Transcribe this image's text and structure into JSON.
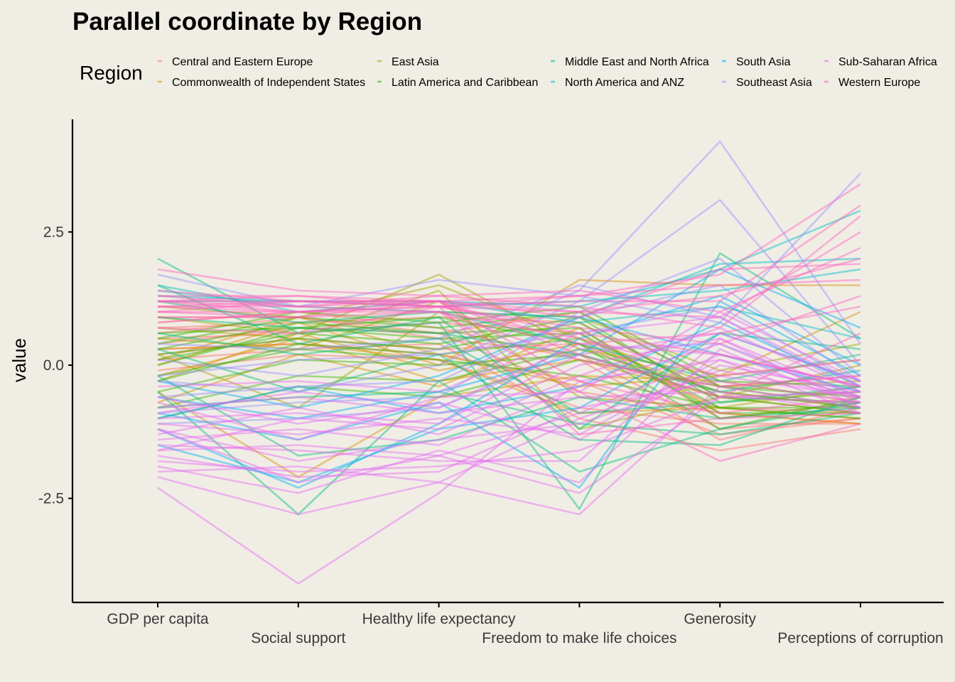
{
  "chart_data": {
    "type": "line",
    "subtype": "parallel-coordinates",
    "title": "Parallel coordinate by Region",
    "ylabel": "value",
    "xlabel": "",
    "categories": [
      "GDP per capita",
      "Social support",
      "Healthy life expectancy",
      "Freedom to make life choices",
      "Generosity",
      "Perceptions of corruption"
    ],
    "y_ticks": [
      -2.5,
      0.0,
      2.5
    ],
    "y_tick_labels": [
      "-2.5",
      "0.0",
      "2.5"
    ],
    "ylim": [
      -4.45,
      4.45
    ],
    "grid": false,
    "line_opacity": 0.45,
    "legend": {
      "title": "Region",
      "position": "top",
      "entries": [
        {
          "name": "Central and Eastern Europe",
          "color": "#F8766D"
        },
        {
          "name": "Commonwealth of Independent States",
          "color": "#D89000"
        },
        {
          "name": "East Asia",
          "color": "#A3A500"
        },
        {
          "name": "Latin America and Caribbean",
          "color": "#39B600"
        },
        {
          "name": "Middle East and North Africa",
          "color": "#00BF7D"
        },
        {
          "name": "North America and ANZ",
          "color": "#00BFC4"
        },
        {
          "name": "South Asia",
          "color": "#00B0F6"
        },
        {
          "name": "Southeast Asia",
          "color": "#9590FF"
        },
        {
          "name": "Sub-Saharan Africa",
          "color": "#E76BF3"
        },
        {
          "name": "Western Europe",
          "color": "#FF62BC"
        }
      ]
    },
    "series": [
      {
        "region": "Central and Eastern Europe",
        "values": [
          0.6,
          0.9,
          0.5,
          0.2,
          -1.2,
          -1.0
        ]
      },
      {
        "region": "Central and Eastern Europe",
        "values": [
          0.4,
          0.7,
          0.6,
          -0.5,
          -0.9,
          -1.1
        ]
      },
      {
        "region": "Central and Eastern Europe",
        "values": [
          0.2,
          0.5,
          0.3,
          0.4,
          -0.8,
          -0.9
        ]
      },
      {
        "region": "Central and Eastern Europe",
        "values": [
          0.8,
          1.0,
          0.7,
          0.1,
          -1.4,
          -0.8
        ]
      },
      {
        "region": "Central and Eastern Europe",
        "values": [
          0.1,
          0.3,
          0.4,
          -1.0,
          -1.6,
          -1.2
        ]
      },
      {
        "region": "Central and Eastern Europe",
        "values": [
          0.5,
          0.6,
          0.8,
          0.6,
          -1.0,
          -0.7
        ]
      },
      {
        "region": "Central and Eastern Europe",
        "values": [
          0.3,
          0.4,
          0.2,
          -0.3,
          -1.3,
          -1.0
        ]
      },
      {
        "region": "Central and Eastern Europe",
        "values": [
          0.7,
          0.8,
          0.9,
          0.8,
          -0.6,
          -0.5
        ]
      },
      {
        "region": "Central and Eastern Europe",
        "values": [
          -0.1,
          0.2,
          0.1,
          -0.8,
          -1.1,
          -1.1
        ]
      },
      {
        "region": "Central and Eastern Europe",
        "values": [
          0.9,
          0.9,
          0.6,
          1.0,
          -0.4,
          -0.2
        ]
      },
      {
        "region": "Commonwealth of Independent States",
        "values": [
          -0.2,
          0.5,
          -0.3,
          0.1,
          -0.6,
          -0.9
        ]
      },
      {
        "region": "Commonwealth of Independent States",
        "values": [
          0.0,
          0.8,
          0.0,
          1.6,
          1.5,
          1.5
        ]
      },
      {
        "region": "Commonwealth of Independent States",
        "values": [
          -0.5,
          -2.1,
          -0.6,
          -0.2,
          -0.3,
          -0.7
        ]
      },
      {
        "region": "Commonwealth of Independent States",
        "values": [
          0.3,
          0.4,
          0.1,
          -0.9,
          -0.8,
          -1.0
        ]
      },
      {
        "region": "Commonwealth of Independent States",
        "values": [
          -0.3,
          0.6,
          -0.1,
          0.4,
          -0.5,
          -0.8
        ]
      },
      {
        "region": "Commonwealth of Independent States",
        "values": [
          0.1,
          0.9,
          0.2,
          -0.4,
          -0.2,
          1.0
        ]
      },
      {
        "region": "Commonwealth of Independent States",
        "values": [
          -0.7,
          0.2,
          -0.4,
          0.7,
          -0.9,
          -1.1
        ]
      },
      {
        "region": "East Asia",
        "values": [
          0.9,
          0.6,
          1.7,
          0.3,
          -0.2,
          0.1
        ]
      },
      {
        "region": "East Asia",
        "values": [
          1.1,
          0.9,
          1.5,
          0.5,
          -0.4,
          -0.3
        ]
      },
      {
        "region": "East Asia",
        "values": [
          0.5,
          0.3,
          1.2,
          -0.6,
          -0.8,
          -0.4
        ]
      },
      {
        "region": "East Asia",
        "values": [
          0.2,
          -0.8,
          1.0,
          0.9,
          -0.1,
          0.4
        ]
      },
      {
        "region": "East Asia",
        "values": [
          0.7,
          0.5,
          1.4,
          -1.2,
          -0.6,
          0.0
        ]
      },
      {
        "region": "Latin America and Caribbean",
        "values": [
          0.2,
          0.5,
          0.3,
          0.8,
          -0.6,
          -0.7
        ]
      },
      {
        "region": "Latin America and Caribbean",
        "values": [
          0.0,
          0.7,
          0.5,
          0.6,
          -0.8,
          -0.8
        ]
      },
      {
        "region": "Latin America and Caribbean",
        "values": [
          0.4,
          0.9,
          0.7,
          1.0,
          -0.4,
          -0.6
        ]
      },
      {
        "region": "Latin America and Caribbean",
        "values": [
          -0.3,
          0.4,
          0.2,
          0.5,
          -0.9,
          -0.9
        ]
      },
      {
        "region": "Latin America and Caribbean",
        "values": [
          0.1,
          0.6,
          0.4,
          0.9,
          -0.7,
          -0.5
        ]
      },
      {
        "region": "Latin America and Caribbean",
        "values": [
          -0.8,
          -0.2,
          -0.3,
          0.3,
          -0.5,
          -0.8
        ]
      },
      {
        "region": "Latin America and Caribbean",
        "values": [
          0.3,
          0.8,
          0.6,
          0.7,
          -1.0,
          -0.7
        ]
      },
      {
        "region": "Latin America and Caribbean",
        "values": [
          -0.5,
          0.1,
          0.0,
          0.2,
          -0.6,
          -0.9
        ]
      },
      {
        "region": "Latin America and Caribbean",
        "values": [
          0.5,
          1.0,
          0.8,
          1.1,
          -0.3,
          -0.4
        ]
      },
      {
        "region": "Latin America and Caribbean",
        "values": [
          -0.2,
          0.3,
          0.1,
          -0.2,
          -0.8,
          -1.0
        ]
      },
      {
        "region": "Latin America and Caribbean",
        "values": [
          0.6,
          0.7,
          0.9,
          0.4,
          -1.2,
          -0.6
        ]
      },
      {
        "region": "Latin America and Caribbean",
        "values": [
          -1.0,
          -0.4,
          -0.6,
          0.1,
          -0.4,
          -0.8
        ]
      },
      {
        "region": "Middle East and North Africa",
        "values": [
          2.0,
          0.6,
          0.8,
          -2.7,
          2.1,
          0.5
        ]
      },
      {
        "region": "Middle East and North Africa",
        "values": [
          1.5,
          0.4,
          0.9,
          -1.2,
          0.6,
          0.3
        ]
      },
      {
        "region": "Middle East and North Africa",
        "values": [
          1.2,
          0.8,
          1.0,
          0.4,
          -0.3,
          0.2
        ]
      },
      {
        "region": "Middle East and North Africa",
        "values": [
          -0.5,
          -2.8,
          -0.3,
          -2.0,
          -1.2,
          -0.7
        ]
      },
      {
        "region": "Middle East and North Africa",
        "values": [
          0.3,
          -0.5,
          0.2,
          -1.4,
          -1.5,
          -0.6
        ]
      },
      {
        "region": "Middle East and North Africa",
        "values": [
          -0.2,
          -1.7,
          -1.4,
          -0.6,
          -1.0,
          -0.8
        ]
      },
      {
        "region": "Middle East and North Africa",
        "values": [
          0.6,
          0.2,
          0.5,
          -0.9,
          -0.7,
          -0.4
        ]
      },
      {
        "region": "Middle East and North Africa",
        "values": [
          0.9,
          0.7,
          0.6,
          0.2,
          -0.5,
          -0.1
        ]
      },
      {
        "region": "Middle East and North Africa",
        "values": [
          -0.8,
          -0.6,
          -0.5,
          -1.1,
          -1.3,
          -0.9
        ]
      },
      {
        "region": "North America and ANZ",
        "values": [
          1.3,
          1.2,
          1.2,
          1.1,
          1.8,
          2.9
        ]
      },
      {
        "region": "North America and ANZ",
        "values": [
          1.4,
          1.1,
          1.0,
          0.9,
          1.9,
          2.0
        ]
      },
      {
        "region": "North America and ANZ",
        "values": [
          1.2,
          1.2,
          1.1,
          1.2,
          1.4,
          1.8
        ]
      },
      {
        "region": "North America and ANZ",
        "values": [
          1.5,
          1.0,
          1.2,
          0.8,
          1.1,
          0.5
        ]
      },
      {
        "region": "South Asia",
        "values": [
          -1.2,
          -2.3,
          -1.1,
          0.5,
          1.3,
          0.0
        ]
      },
      {
        "region": "South Asia",
        "values": [
          -0.9,
          -1.4,
          -0.7,
          -2.3,
          1.2,
          -0.2
        ]
      },
      {
        "region": "South Asia",
        "values": [
          -0.6,
          -1.0,
          -0.5,
          0.2,
          1.8,
          0.7
        ]
      },
      {
        "region": "South Asia",
        "values": [
          -1.5,
          -2.2,
          -1.2,
          -0.8,
          0.6,
          -0.3
        ]
      },
      {
        "region": "South Asia",
        "values": [
          -0.3,
          -0.8,
          -0.2,
          0.9,
          0.2,
          -0.5
        ]
      },
      {
        "region": "South Asia",
        "values": [
          -1.0,
          -0.4,
          -0.9,
          -0.4,
          0.8,
          -0.4
        ]
      },
      {
        "region": "Southeast Asia",
        "values": [
          0.1,
          -0.2,
          0.3,
          1.4,
          4.2,
          0.4
        ]
      },
      {
        "region": "Southeast Asia",
        "values": [
          -0.3,
          -0.5,
          0.0,
          1.2,
          3.1,
          0.0
        ]
      },
      {
        "region": "Southeast Asia",
        "values": [
          1.7,
          1.1,
          1.6,
          1.3,
          0.8,
          3.6
        ]
      },
      {
        "region": "Southeast Asia",
        "values": [
          -0.6,
          -0.4,
          -0.3,
          0.9,
          1.5,
          -0.3
        ]
      },
      {
        "region": "Southeast Asia",
        "values": [
          0.4,
          0.3,
          0.5,
          1.5,
          0.9,
          -0.5
        ]
      },
      {
        "region": "Southeast Asia",
        "values": [
          -0.9,
          -0.7,
          -0.6,
          1.0,
          2.0,
          -0.2
        ]
      },
      {
        "region": "Southeast Asia",
        "values": [
          -0.2,
          0.1,
          0.2,
          0.6,
          1.1,
          -0.4
        ]
      },
      {
        "region": "Southeast Asia",
        "values": [
          -1.1,
          -1.0,
          -0.8,
          0.3,
          0.4,
          -0.6
        ]
      },
      {
        "region": "Sub-Saharan Africa",
        "values": [
          -2.3,
          -4.1,
          -2.4,
          -0.3,
          0.1,
          -0.6
        ]
      },
      {
        "region": "Sub-Saharan Africa",
        "values": [
          -2.1,
          -2.8,
          -2.2,
          -2.8,
          -0.4,
          -0.8
        ]
      },
      {
        "region": "Sub-Saharan Africa",
        "values": [
          -1.8,
          -2.0,
          -1.9,
          -1.6,
          -0.6,
          -0.5
        ]
      },
      {
        "region": "Sub-Saharan Africa",
        "values": [
          -1.6,
          -1.5,
          -1.7,
          -0.9,
          0.2,
          -0.4
        ]
      },
      {
        "region": "Sub-Saharan Africa",
        "values": [
          -1.4,
          -1.2,
          -1.5,
          -0.4,
          0.4,
          -0.7
        ]
      },
      {
        "region": "Sub-Saharan Africa",
        "values": [
          -1.2,
          -1.8,
          -1.4,
          -1.1,
          -0.2,
          -0.6
        ]
      },
      {
        "region": "Sub-Saharan Africa",
        "values": [
          -1.0,
          -0.9,
          -1.1,
          0.2,
          0.6,
          -0.3
        ]
      },
      {
        "region": "Sub-Saharan Africa",
        "values": [
          -0.8,
          -0.6,
          -0.9,
          -0.6,
          -0.5,
          -0.9
        ]
      },
      {
        "region": "Sub-Saharan Africa",
        "values": [
          -0.6,
          -1.1,
          -0.7,
          -1.4,
          0.0,
          -0.5
        ]
      },
      {
        "region": "Sub-Saharan Africa",
        "values": [
          -0.4,
          -0.3,
          -0.5,
          0.6,
          0.9,
          -0.4
        ]
      },
      {
        "region": "Sub-Saharan Africa",
        "values": [
          -1.9,
          -2.4,
          -1.6,
          -2.2,
          0.3,
          -0.8
        ]
      },
      {
        "region": "Sub-Saharan Africa",
        "values": [
          -1.5,
          -1.6,
          -1.8,
          -1.8,
          0.5,
          -0.6
        ]
      },
      {
        "region": "Sub-Saharan Africa",
        "values": [
          -1.7,
          -2.1,
          -2.0,
          -0.8,
          -0.3,
          -0.7
        ]
      },
      {
        "region": "Sub-Saharan Africa",
        "values": [
          -1.3,
          -0.8,
          -1.3,
          -0.2,
          0.7,
          -0.5
        ]
      },
      {
        "region": "Sub-Saharan Africa",
        "values": [
          -1.1,
          -1.3,
          -1.0,
          -1.3,
          0.1,
          -0.9
        ]
      },
      {
        "region": "Sub-Saharan Africa",
        "values": [
          -0.9,
          -0.5,
          -0.8,
          0.4,
          0.2,
          -0.4
        ]
      },
      {
        "region": "Sub-Saharan Africa",
        "values": [
          -2.0,
          -1.9,
          -2.2,
          -1.0,
          -0.1,
          -0.6
        ]
      },
      {
        "region": "Sub-Saharan Africa",
        "values": [
          -0.7,
          -1.4,
          -0.6,
          -0.5,
          1.0,
          -0.3
        ]
      },
      {
        "region": "Sub-Saharan Africa",
        "values": [
          -1.6,
          -1.0,
          -1.2,
          0.0,
          0.5,
          -0.8
        ]
      },
      {
        "region": "Sub-Saharan Africa",
        "values": [
          -1.2,
          -2.2,
          -1.7,
          -2.4,
          -0.6,
          -0.7
        ]
      },
      {
        "region": "Western Europe",
        "values": [
          1.4,
          1.2,
          1.2,
          1.3,
          1.7,
          3.4
        ]
      },
      {
        "region": "Western Europe",
        "values": [
          1.2,
          1.3,
          1.1,
          1.2,
          1.2,
          3.0
        ]
      },
      {
        "region": "Western Europe",
        "values": [
          1.3,
          1.1,
          1.3,
          1.1,
          0.7,
          2.8
        ]
      },
      {
        "region": "Western Europe",
        "values": [
          1.1,
          1.2,
          1.2,
          1.0,
          0.9,
          2.5
        ]
      },
      {
        "region": "Western Europe",
        "values": [
          1.8,
          1.4,
          1.3,
          1.4,
          1.0,
          2.2
        ]
      },
      {
        "region": "Western Europe",
        "values": [
          1.0,
          1.0,
          1.1,
          0.7,
          0.4,
          1.3
        ]
      },
      {
        "region": "Western Europe",
        "values": [
          1.2,
          1.1,
          1.0,
          0.5,
          -0.2,
          0.1
        ]
      },
      {
        "region": "Western Europe",
        "values": [
          0.9,
          0.9,
          1.2,
          -0.3,
          -0.9,
          -0.6
        ]
      },
      {
        "region": "Western Europe",
        "values": [
          1.3,
          1.3,
          1.2,
          0.9,
          1.8,
          1.9
        ]
      },
      {
        "region": "Western Europe",
        "values": [
          1.0,
          1.2,
          1.1,
          0.6,
          0.2,
          -0.4
        ]
      },
      {
        "region": "Western Europe",
        "values": [
          0.8,
          1.0,
          1.0,
          -0.5,
          -1.8,
          -1.1
        ]
      },
      {
        "region": "Western Europe",
        "values": [
          1.1,
          1.0,
          1.2,
          0.2,
          -0.6,
          0.6
        ]
      },
      {
        "region": "Western Europe",
        "values": [
          1.2,
          1.2,
          1.1,
          1.3,
          1.5,
          1.6
        ]
      },
      {
        "region": "Western Europe",
        "values": [
          0.7,
          0.6,
          1.1,
          -1.3,
          -1.0,
          -0.9
        ]
      },
      {
        "region": "Western Europe",
        "values": [
          1.1,
          1.1,
          1.2,
          0.4,
          0.6,
          1.1
        ]
      },
      {
        "region": "Western Europe",
        "values": [
          1.2,
          1.0,
          1.1,
          1.0,
          1.3,
          2.0
        ]
      },
      {
        "region": "Western Europe",
        "values": [
          1.0,
          0.9,
          1.0,
          0.1,
          -0.4,
          -0.2
        ]
      }
    ]
  }
}
